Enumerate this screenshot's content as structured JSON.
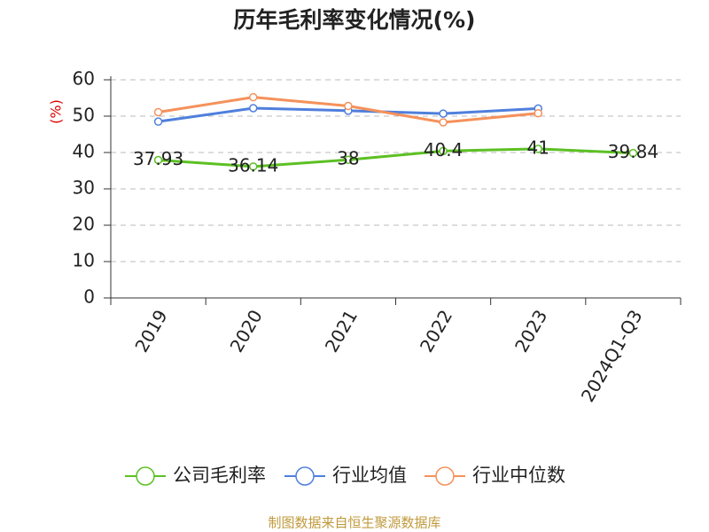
{
  "chart_data": {
    "type": "line",
    "title": "历年毛利率变化情况(%)",
    "y_label": "(%)",
    "categories": [
      "2019",
      "2020",
      "2021",
      "2022",
      "2023",
      "2024Q1-Q3"
    ],
    "series": [
      {
        "name": "公司毛利率",
        "color": "#5cc023",
        "values": [
          37.93,
          36.14,
          38,
          40.4,
          41,
          39.84
        ],
        "data_labels": true
      },
      {
        "name": "行业均值",
        "color": "#4f7fdc",
        "values": [
          48.5,
          52.2,
          51.5,
          50.7,
          52.1,
          null
        ],
        "data_labels": false
      },
      {
        "name": "行业中位数",
        "color": "#f5915a",
        "values": [
          51.1,
          55.2,
          52.8,
          48.3,
          50.8,
          null
        ],
        "data_labels": false
      }
    ],
    "ylim": [
      0,
      60
    ],
    "yticks": [
      0,
      10,
      20,
      30,
      40,
      50,
      60
    ],
    "grid": true,
    "source": "制图数据来自恒生聚源数据库"
  }
}
